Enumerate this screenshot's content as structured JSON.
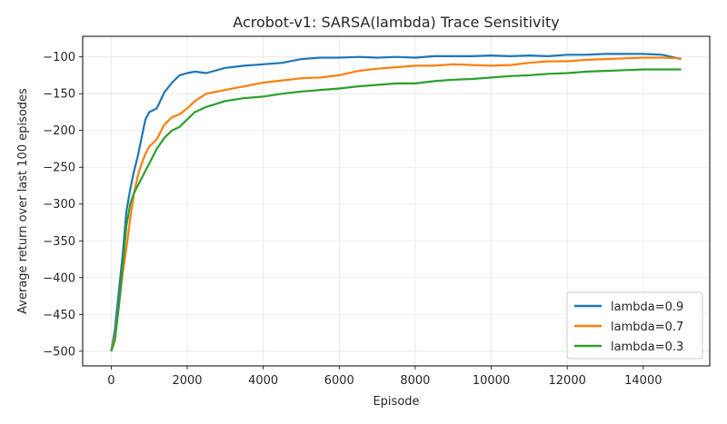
{
  "chart_data": {
    "type": "line",
    "title": "Acrobot-v1: SARSA(lambda) Trace Sensitivity",
    "xlabel": "Episode",
    "ylabel": "Average return over last 100 episodes",
    "xlim": [
      -750,
      15750
    ],
    "ylim": [
      -520,
      -72
    ],
    "xticks": [
      0,
      2000,
      4000,
      6000,
      8000,
      10000,
      12000,
      14000
    ],
    "yticks": [
      -500,
      -450,
      -400,
      -350,
      -300,
      -250,
      -200,
      -150,
      -100
    ],
    "grid": true,
    "legend_position": "lower-right",
    "x": [
      0,
      100,
      200,
      300,
      400,
      500,
      600,
      700,
      800,
      900,
      1000,
      1200,
      1400,
      1600,
      1800,
      2000,
      2200,
      2500,
      3000,
      3500,
      4000,
      4500,
      5000,
      5500,
      6000,
      6500,
      7000,
      7500,
      8000,
      8500,
      9000,
      9500,
      10000,
      10500,
      11000,
      11500,
      12000,
      12500,
      13000,
      13500,
      14000,
      14500,
      15000
    ],
    "series": [
      {
        "name": "lambda=0.9",
        "color": "#1f77b4",
        "values": [
          -500,
          -470,
          -420,
          -370,
          -310,
          -280,
          -255,
          -235,
          -210,
          -185,
          -175,
          -170,
          -148,
          -135,
          -125,
          -122,
          -120,
          -122,
          -115,
          -112,
          -110,
          -108,
          -103,
          -101,
          -101,
          -100,
          -101,
          -100,
          -101,
          -99,
          -99,
          -99,
          -98,
          -99,
          -98,
          -99,
          -97,
          -97,
          -96,
          -96,
          -96,
          -97,
          -103
        ]
      },
      {
        "name": "lambda=0.7",
        "color": "#ff7f0e",
        "values": [
          -500,
          -480,
          -440,
          -395,
          -360,
          -320,
          -285,
          -262,
          -245,
          -232,
          -222,
          -212,
          -192,
          -182,
          -178,
          -170,
          -160,
          -150,
          -145,
          -140,
          -135,
          -132,
          -129,
          -128,
          -125,
          -119,
          -116,
          -114,
          -112,
          -112,
          -110,
          -111,
          -112,
          -111,
          -108,
          -106,
          -106,
          -104,
          -103,
          -102,
          -101,
          -101,
          -102
        ]
      },
      {
        "name": "lambda=0.3",
        "color": "#2ca02c",
        "values": [
          -500,
          -485,
          -440,
          -385,
          -330,
          -300,
          -285,
          -275,
          -265,
          -255,
          -245,
          -225,
          -210,
          -200,
          -195,
          -185,
          -175,
          -168,
          -160,
          -156,
          -154,
          -150,
          -147,
          -145,
          -143,
          -140,
          -138,
          -136,
          -136,
          -133,
          -131,
          -130,
          -128,
          -126,
          -125,
          -123,
          -122,
          -120,
          -119,
          -118,
          -117,
          -117,
          -117
        ]
      }
    ]
  }
}
